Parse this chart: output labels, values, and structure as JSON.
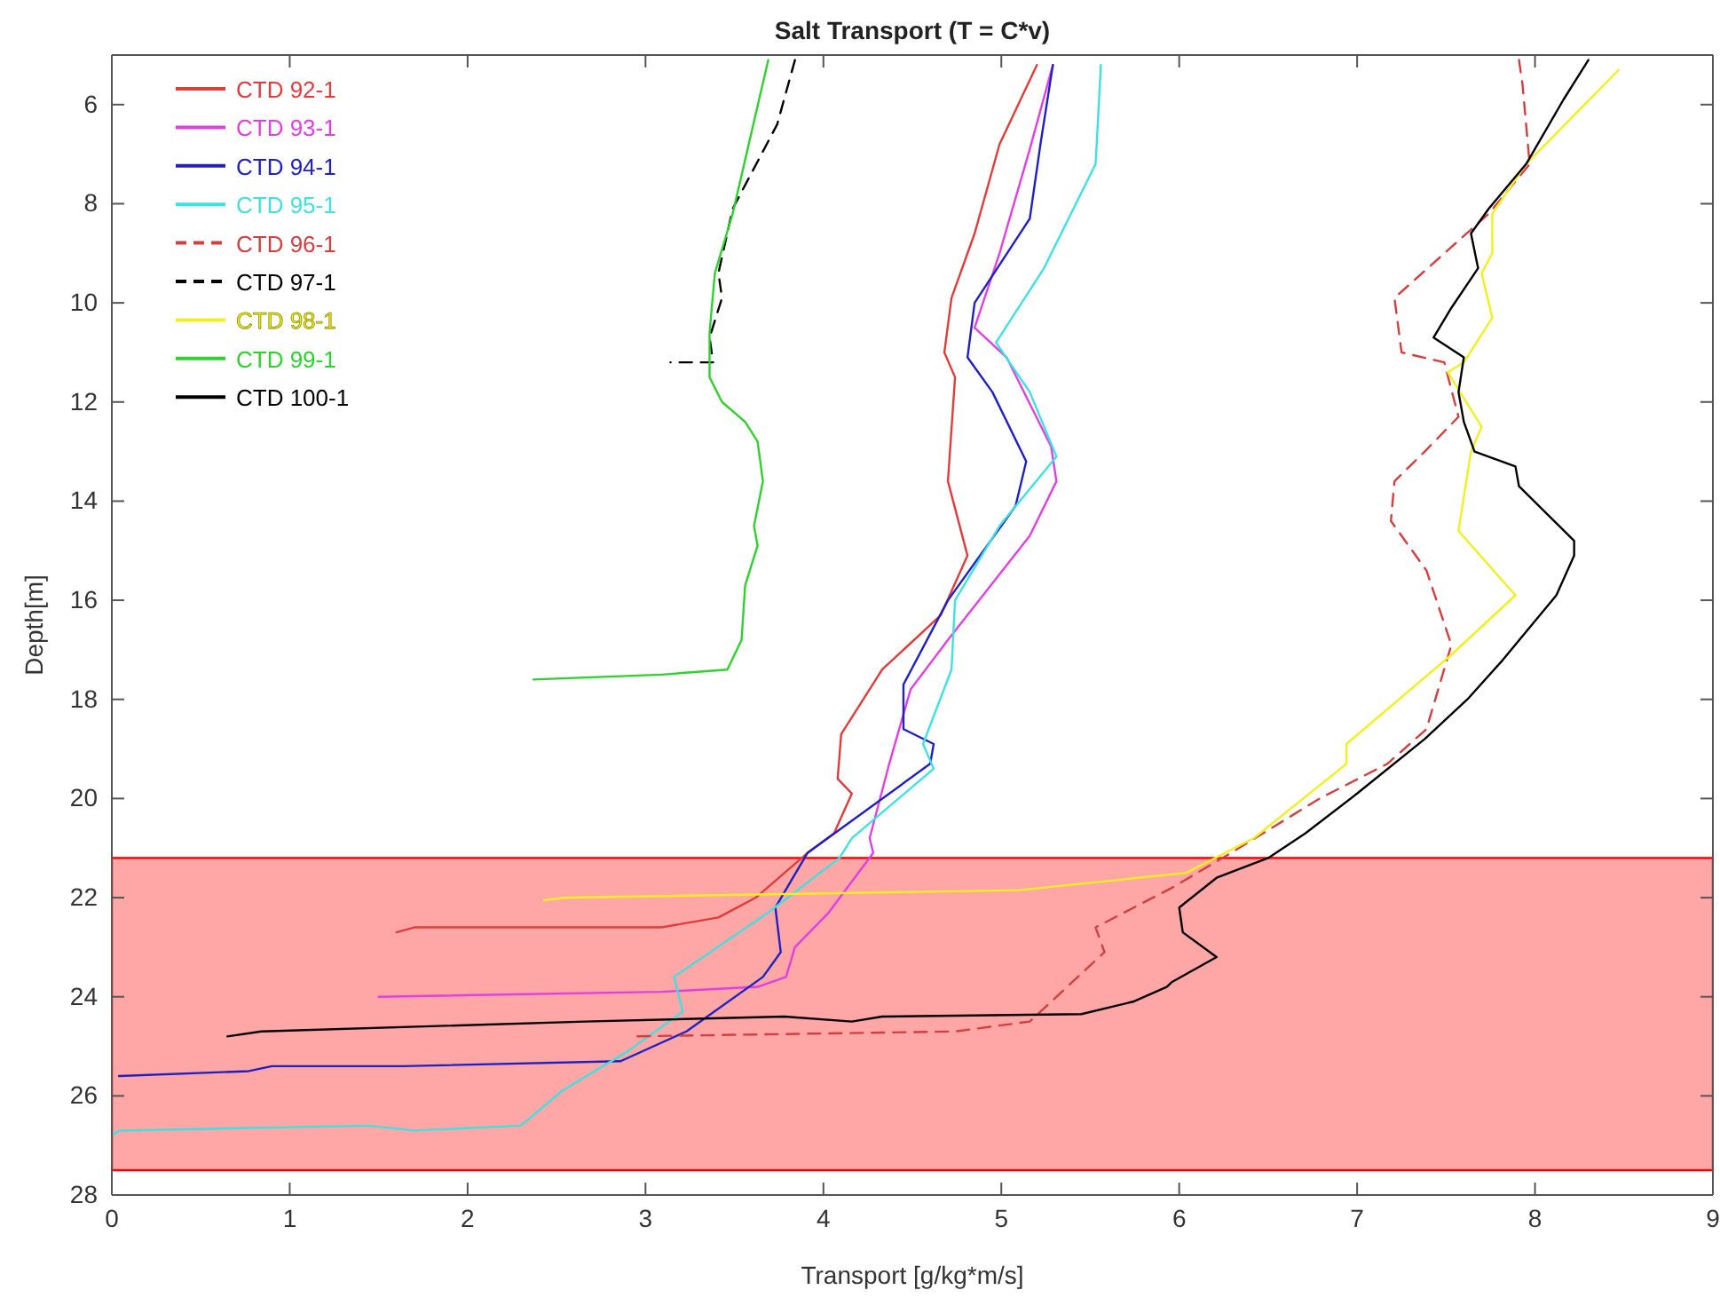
{
  "chart_data": {
    "type": "line",
    "title": "Salt Transport (T = C*v)",
    "xlabel": "Transport [g/kg*m/s]",
    "ylabel": "Depth[m]",
    "xlim": [
      0,
      9
    ],
    "xticks": [
      0,
      1,
      2,
      3,
      4,
      5,
      6,
      7,
      8,
      9
    ],
    "ylim": [
      28,
      5
    ],
    "yticks": [
      6,
      8,
      10,
      12,
      14,
      16,
      18,
      20,
      22,
      24,
      26,
      28
    ],
    "grid": false,
    "legend": "top left",
    "line_style": "solid",
    "bands": [
      {
        "axis": "y",
        "from": 21.2,
        "to": 27.5,
        "color": "#ff0000"
      }
    ],
    "series": [
      {
        "name": "CTD 92-1",
        "color": "#e03c3c",
        "x": [
          5.2,
          4.99,
          4.85,
          4.72,
          4.68,
          4.74,
          4.7,
          4.81,
          4.66,
          4.33,
          4.1,
          4.08,
          4.16,
          4.06,
          3.91,
          3.62,
          3.41,
          3.09,
          1.7,
          1.6
        ],
        "values": [
          5.2,
          6.8,
          8.6,
          9.9,
          11,
          11.5,
          13.6,
          15.1,
          16.3,
          17.4,
          18.7,
          19.6,
          19.9,
          20.7,
          21.1,
          22,
          22.4,
          22.6,
          22.6,
          22.7
        ]
      },
      {
        "name": "CTD 93-1",
        "color": "#e040e0",
        "x": [
          5.29,
          5.16,
          4.99,
          4.85,
          5.03,
          5.28,
          5.31,
          5.16,
          4.7,
          4.49,
          4.37,
          4.26,
          4.28,
          4.03,
          3.84,
          3.79,
          3.63,
          3.09,
          1.5
        ],
        "values": [
          5.2,
          6.9,
          9,
          10.5,
          11.1,
          12.9,
          13.6,
          14.7,
          16.8,
          17.8,
          19.3,
          20.8,
          21.1,
          22.3,
          23,
          23.6,
          23.8,
          23.9,
          24
        ]
      },
      {
        "name": "CTD 94-1",
        "color": "#2020c0",
        "x": [
          5.29,
          5.22,
          5.16,
          4.85,
          4.81,
          4.95,
          5.14,
          5.08,
          4.7,
          4.45,
          4.45,
          4.62,
          4.6,
          3.91,
          3.73,
          3.76,
          3.66,
          3.23,
          2.86,
          1.64,
          0.9,
          0.77,
          0.04
        ],
        "values": [
          5.2,
          6.8,
          8.3,
          10,
          11.1,
          11.8,
          13.2,
          14.1,
          16,
          17.7,
          18.6,
          18.9,
          19.3,
          21.1,
          22.2,
          23.1,
          23.6,
          24.7,
          25.3,
          25.4,
          25.4,
          25.5,
          25.6
        ]
      },
      {
        "name": "CTD 95-1",
        "color": "#40e0e0",
        "x": [
          5.56,
          5.53,
          5.24,
          4.97,
          5.16,
          5.31,
          4.99,
          4.74,
          4.72,
          4.56,
          4.62,
          4.16,
          4.09,
          3.69,
          3.16,
          3.21,
          2.9,
          2.53,
          2.3,
          1.7,
          1.44,
          0.04,
          0
        ],
        "values": [
          5.2,
          7.2,
          9.3,
          10.8,
          11.8,
          13.1,
          14.5,
          16,
          17.4,
          18.9,
          19.4,
          20.8,
          21.2,
          22.3,
          23.6,
          24.3,
          25.1,
          25.9,
          26.6,
          26.7,
          26.6,
          26.7,
          26.8
        ]
      },
      {
        "name": "CTD 96-1",
        "color": "#d04040",
        "line_style": "dashed",
        "x": [
          7.91,
          7.93,
          7.97,
          7.74,
          7.21,
          7.25,
          7.49,
          7.57,
          7.38,
          7.21,
          7.19,
          7.39,
          7.53,
          7.39,
          7.17,
          6.79,
          6.29,
          5.96,
          5.53,
          5.58,
          5.28,
          5.16,
          4.74,
          2.92
        ],
        "values": [
          5.1,
          5.6,
          7.2,
          8.2,
          9.9,
          11,
          11.2,
          12.3,
          13,
          13.6,
          14.4,
          15.4,
          16.9,
          18.6,
          19.3,
          20,
          21.1,
          21.8,
          22.6,
          23.1,
          24.1,
          24.5,
          24.7,
          24.8
        ]
      },
      {
        "name": "CTD 97-1",
        "color": "#000000",
        "line_style": "dashed",
        "x": [
          3.84,
          3.74,
          3.49,
          3.41,
          3.43,
          3.36,
          3.38,
          3.14
        ],
        "values": [
          5.1,
          6.4,
          8.1,
          9.4,
          9.9,
          10.7,
          11.2,
          11.2
        ]
      },
      {
        "name": "CTD 98-1",
        "color": "#f0f020",
        "x": [
          8.47,
          7.95,
          7.76,
          7.76,
          7.7,
          7.76,
          7.6,
          7.51,
          7.7,
          7.64,
          7.57,
          7.89,
          7.53,
          6.94,
          6.94,
          6.42,
          6.04,
          5.1,
          2.56,
          2.43
        ],
        "values": [
          5.3,
          7.2,
          8.2,
          9,
          9.4,
          10.3,
          11.2,
          11.4,
          12.5,
          13,
          14.6,
          15.9,
          17.1,
          18.9,
          19.3,
          20.8,
          21.5,
          21.85,
          22,
          22.05
        ]
      },
      {
        "name": "CTD 99-1",
        "color": "#30d030",
        "x": [
          3.69,
          3.49,
          3.39,
          3.36,
          3.36,
          3.43,
          3.56,
          3.63,
          3.66,
          3.61,
          3.63,
          3.56,
          3.54,
          3.46,
          3.09,
          2.37
        ],
        "values": [
          5.1,
          8.2,
          9.4,
          10.6,
          11.5,
          12,
          12.4,
          12.8,
          13.6,
          14.5,
          14.9,
          15.7,
          16.8,
          17.4,
          17.5,
          17.6
        ]
      },
      {
        "name": "CTD 100-1",
        "color": "#000000",
        "x": [
          8.3,
          8.16,
          7.95,
          7.74,
          7.64,
          7.68,
          7.53,
          7.43,
          7.6,
          7.57,
          7.6,
          7.66,
          7.89,
          7.91,
          8.22,
          8.22,
          8.12,
          7.82,
          7.62,
          7.38,
          7,
          6.71,
          6.5,
          6.21,
          6,
          6.02,
          6.21,
          5.96,
          5.93,
          5.74,
          5.45,
          4.33,
          4.16,
          3.78,
          2.66,
          0.84,
          0.65
        ],
        "values": [
          5.1,
          5.9,
          7.2,
          8.1,
          8.6,
          9.3,
          10.1,
          10.7,
          11.1,
          11.8,
          12.4,
          13,
          13.3,
          13.7,
          14.8,
          15.1,
          15.9,
          17.2,
          18,
          18.8,
          19.9,
          20.7,
          21.2,
          21.6,
          22.2,
          22.7,
          23.2,
          23.7,
          23.8,
          24.1,
          24.35,
          24.4,
          24.5,
          24.4,
          24.5,
          24.7,
          24.8
        ]
      }
    ]
  }
}
